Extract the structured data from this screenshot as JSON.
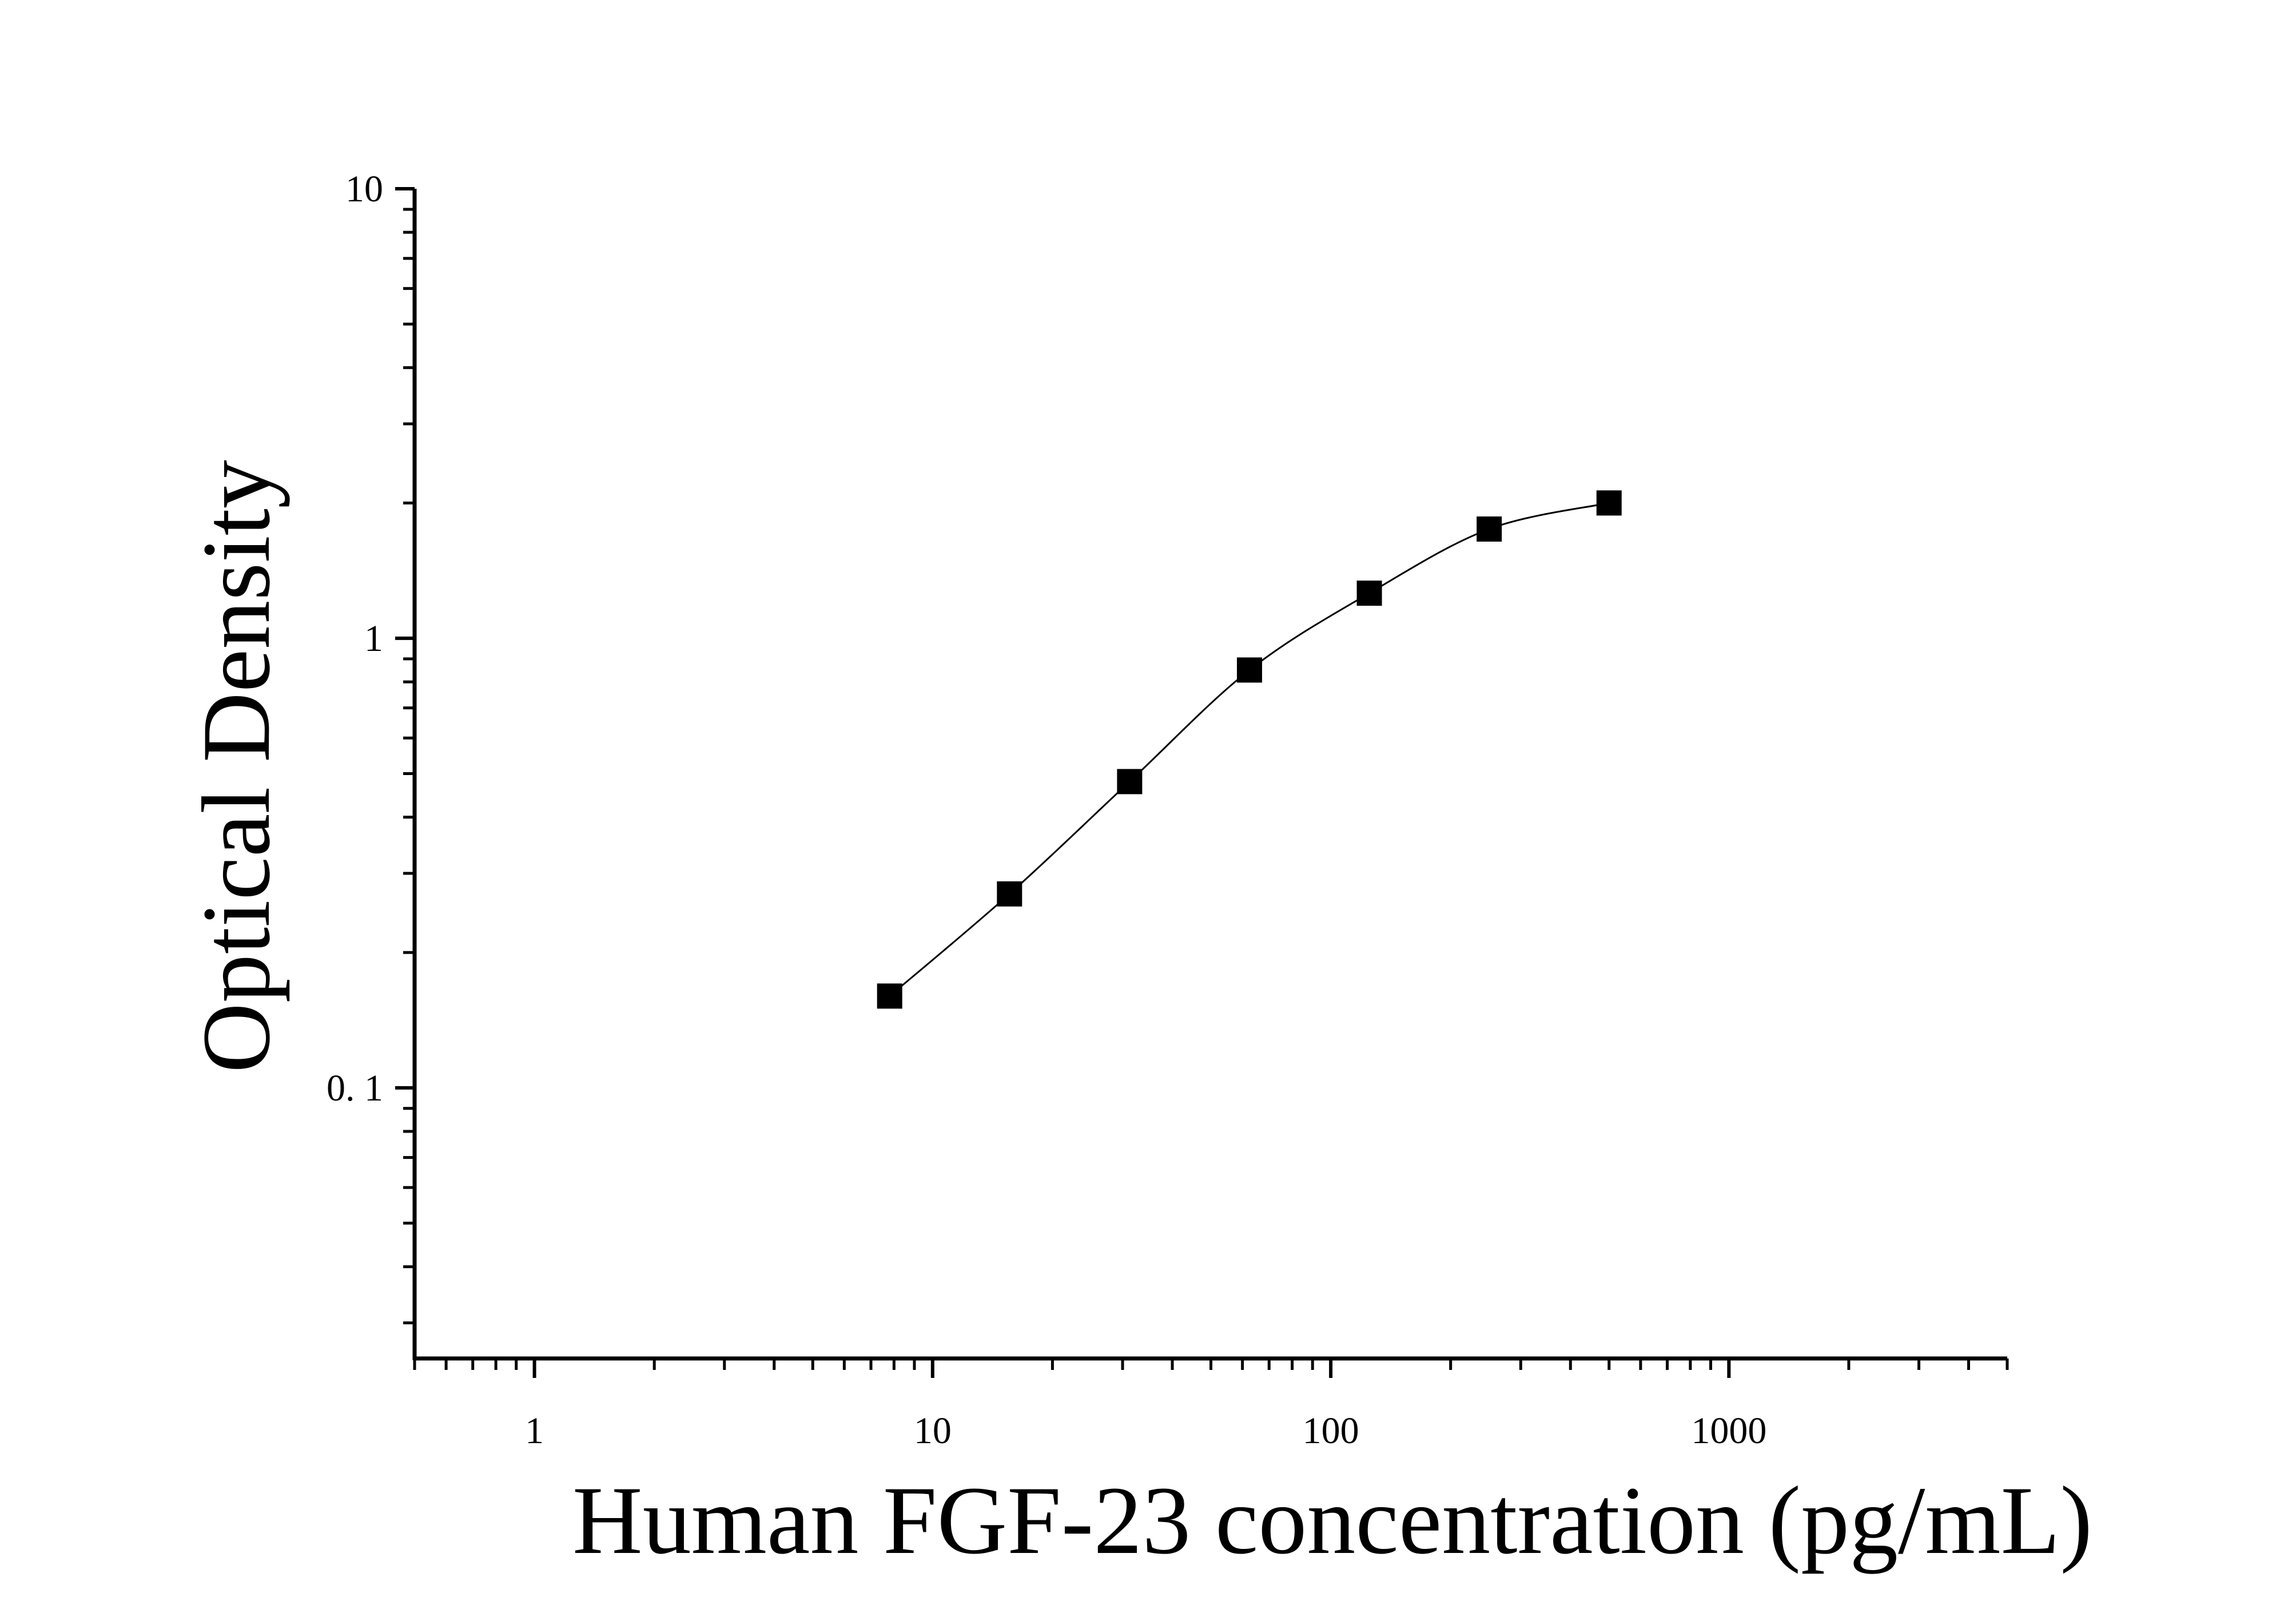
{
  "chart_data": {
    "type": "scatter",
    "title": "",
    "xlabel": "Human FGF-23 concentration (pg/mL)",
    "ylabel": "Optical Density",
    "x_scale": "log",
    "y_scale": "log",
    "xlim": [
      0.5,
      5000
    ],
    "ylim": [
      0.025,
      10
    ],
    "x_ticks": [
      {
        "value": 1,
        "label": "1"
      },
      {
        "value": 10,
        "label": "10"
      },
      {
        "value": 100,
        "label": "100"
      },
      {
        "value": 1000,
        "label": "1000"
      }
    ],
    "y_ticks": [
      {
        "value": 0.1,
        "label": "0. 1"
      },
      {
        "value": 1,
        "label": "1"
      },
      {
        "value": 10,
        "label": "10"
      }
    ],
    "grid": false,
    "legend": "none",
    "series": [
      {
        "marker": "square",
        "color": "#000000",
        "fit_line": true,
        "points": [
          {
            "x": 7.8,
            "y": 0.16
          },
          {
            "x": 15.6,
            "y": 0.27
          },
          {
            "x": 31.25,
            "y": 0.48
          },
          {
            "x": 62.5,
            "y": 0.85
          },
          {
            "x": 125,
            "y": 1.26
          },
          {
            "x": 250,
            "y": 1.75
          },
          {
            "x": 500,
            "y": 2.0
          }
        ]
      }
    ]
  }
}
